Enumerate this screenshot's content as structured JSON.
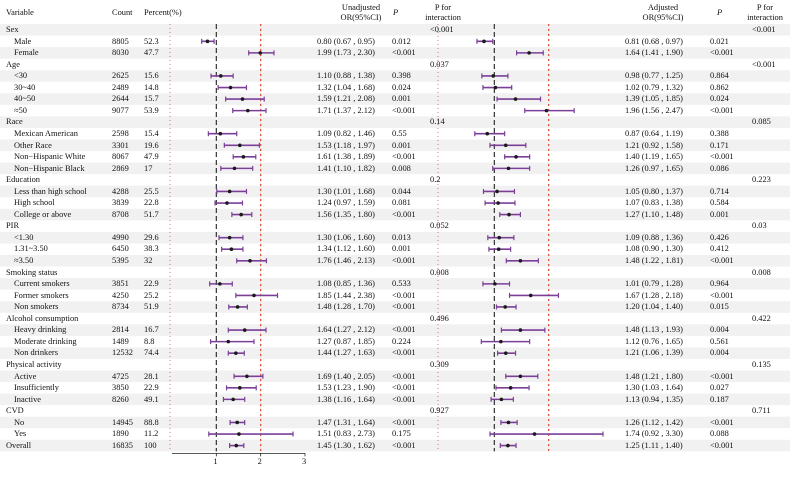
{
  "chart_data": {
    "type": "forest",
    "title": "",
    "headers": {
      "variable": "Variable",
      "count": "Count",
      "percent": "Percent(%)",
      "unadjusted": "Unadjusted",
      "unadjusted_sub": "OR(95%CI)",
      "p": "P",
      "p_inter_1": "P for",
      "p_inter_2": "interaction",
      "adjusted": "Adjusted",
      "adjusted_sub": "OR(95%CI)",
      "p2": "P",
      "p_inter2_1": "P for",
      "p_inter2_2": "interaction"
    },
    "xlim": [
      0,
      3
    ],
    "ticks": [
      "1",
      "2",
      "3"
    ],
    "reference_line": 1,
    "dotted_line": 2,
    "rows": [
      {
        "label": "Sex",
        "group": true,
        "p_int_u": "<0.001",
        "p_int_a": "<0.001"
      },
      {
        "label": "Male",
        "count": "8805",
        "pct": "52.3",
        "or_u": "0.80 (0.67 , 0.95)",
        "p_u": "0.012",
        "or_a": "0.81 (0.68 , 0.97)",
        "p_a": "0.021",
        "u": [
          0.8,
          0.67,
          0.95
        ],
        "a": [
          0.81,
          0.68,
          0.97
        ]
      },
      {
        "label": "Female",
        "count": "8030",
        "pct": "47.7",
        "or_u": "1.99 (1.73 , 2.30)",
        "p_u": "<0.001",
        "or_a": "1.64 (1.41 , 1.90)",
        "p_a": "<0.001",
        "u": [
          1.99,
          1.73,
          2.3
        ],
        "a": [
          1.64,
          1.41,
          1.9
        ]
      },
      {
        "label": "Age",
        "group": true,
        "p_int_u": "0.037",
        "p_int_a": "<0.001"
      },
      {
        "label": "<30",
        "count": "2625",
        "pct": "15.6",
        "or_u": "1.10 (0.88 , 1.38)",
        "p_u": "0.398",
        "or_a": "0.98 (0.77 , 1.25)",
        "p_a": "0.864",
        "u": [
          1.1,
          0.88,
          1.38
        ],
        "a": [
          0.98,
          0.77,
          1.25
        ]
      },
      {
        "label": "30~40",
        "count": "2489",
        "pct": "14.8",
        "or_u": "1.32 (1.04 , 1.68)",
        "p_u": "0.024",
        "or_a": "1.02 (0.79 , 1.32)",
        "p_a": "0.862",
        "u": [
          1.32,
          1.04,
          1.68
        ],
        "a": [
          1.02,
          0.79,
          1.32
        ]
      },
      {
        "label": "40~50",
        "count": "2644",
        "pct": "15.7",
        "or_u": "1.59 (1.21 , 2.08)",
        "p_u": "0.001",
        "or_a": "1.39 (1.05 , 1.85)",
        "p_a": "0.024",
        "u": [
          1.59,
          1.21,
          2.08
        ],
        "a": [
          1.39,
          1.05,
          1.85
        ]
      },
      {
        "label": "≈50",
        "count": "9077",
        "pct": "53.9",
        "or_u": "1.71 (1.37 , 2.12)",
        "p_u": "<0.001",
        "or_a": "1.96 (1.56 , 2.47)",
        "p_a": "<0.001",
        "u": [
          1.71,
          1.37,
          2.12
        ],
        "a": [
          1.96,
          1.56,
          2.47
        ]
      },
      {
        "label": "Race",
        "group": true,
        "p_int_u": "0.14",
        "p_int_a": "0.085"
      },
      {
        "label": "Mexican American",
        "count": "2598",
        "pct": "15.4",
        "or_u": "1.09 (0.82 , 1.46)",
        "p_u": "0.55",
        "or_a": "0.87 (0.64 , 1.19)",
        "p_a": "0.388",
        "u": [
          1.09,
          0.82,
          1.46
        ],
        "a": [
          0.87,
          0.64,
          1.19
        ]
      },
      {
        "label": "Other Race",
        "count": "3301",
        "pct": "19.6",
        "or_u": "1.53 (1.18 , 1.97)",
        "p_u": "0.001",
        "or_a": "1.21 (0.92 , 1.58)",
        "p_a": "0.171",
        "u": [
          1.53,
          1.18,
          1.97
        ],
        "a": [
          1.21,
          0.92,
          1.58
        ]
      },
      {
        "label": "Non−Hispanic White",
        "count": "8067",
        "pct": "47.9",
        "or_u": "1.61 (1.38 , 1.89)",
        "p_u": "<0.001",
        "or_a": "1.40 (1.19 , 1.65)",
        "p_a": "<0.001",
        "u": [
          1.61,
          1.38,
          1.89
        ],
        "a": [
          1.4,
          1.19,
          1.65
        ]
      },
      {
        "label": "Non−Hispanic Black",
        "count": "2869",
        "pct": "17",
        "or_u": "1.41 (1.10 , 1.82)",
        "p_u": "0.008",
        "or_a": "1.26 (0.97 , 1.65)",
        "p_a": "0.086",
        "u": [
          1.41,
          1.1,
          1.82
        ],
        "a": [
          1.26,
          0.97,
          1.65
        ]
      },
      {
        "label": "Education",
        "group": true,
        "p_int_u": "0.2",
        "p_int_a": "0.223"
      },
      {
        "label": "Less than high school",
        "count": "4288",
        "pct": "25.5",
        "or_u": "1.30 (1.01 , 1.68)",
        "p_u": "0.044",
        "or_a": "1.05 (0.80 , 1.37)",
        "p_a": "0.714",
        "u": [
          1.3,
          1.01,
          1.68
        ],
        "a": [
          1.05,
          0.8,
          1.37
        ]
      },
      {
        "label": "High school",
        "count": "3839",
        "pct": "22.8",
        "or_u": "1.24 (0.97 , 1.59)",
        "p_u": "0.081",
        "or_a": "1.07 (0.83 , 1.38)",
        "p_a": "0.584",
        "u": [
          1.24,
          0.97,
          1.59
        ],
        "a": [
          1.07,
          0.83,
          1.38
        ]
      },
      {
        "label": "College or above",
        "count": "8708",
        "pct": "51.7",
        "or_u": "1.56 (1.35 , 1.80)",
        "p_u": "<0.001",
        "or_a": "1.27 (1.10 , 1.48)",
        "p_a": "0.001",
        "u": [
          1.56,
          1.35,
          1.8
        ],
        "a": [
          1.27,
          1.1,
          1.48
        ]
      },
      {
        "label": "PIR",
        "group": true,
        "p_int_u": "0.052",
        "p_int_a": "0.03"
      },
      {
        "label": "<1.30",
        "count": "4990",
        "pct": "29.6",
        "or_u": "1.30 (1.06 , 1.60)",
        "p_u": "0.013",
        "or_a": "1.09 (0.88 , 1.36)",
        "p_a": "0.426",
        "u": [
          1.3,
          1.06,
          1.6
        ],
        "a": [
          1.09,
          0.88,
          1.36
        ]
      },
      {
        "label": "1.31~3.50",
        "count": "6450",
        "pct": "38.3",
        "or_u": "1.34 (1.12 , 1.60)",
        "p_u": "0.001",
        "or_a": "1.08 (0.90 , 1.30)",
        "p_a": "0.412",
        "u": [
          1.34,
          1.12,
          1.6
        ],
        "a": [
          1.08,
          0.9,
          1.3
        ]
      },
      {
        "label": "≈3.50",
        "count": "5395",
        "pct": "32",
        "or_u": "1.76 (1.46 , 2.13)",
        "p_u": "<0.001",
        "or_a": "1.48 (1.22 , 1.81)",
        "p_a": "<0.001",
        "u": [
          1.76,
          1.46,
          2.13
        ],
        "a": [
          1.48,
          1.22,
          1.81
        ]
      },
      {
        "label": "Smoking status",
        "group": true,
        "p_int_u": "0.008",
        "p_int_a": "0.008"
      },
      {
        "label": "Current smokers",
        "count": "3851",
        "pct": "22.9",
        "or_u": "1.08 (0.85 , 1.36)",
        "p_u": "0.533",
        "or_a": "1.01 (0.79 , 1.28)",
        "p_a": "0.964",
        "u": [
          1.08,
          0.85,
          1.36
        ],
        "a": [
          1.01,
          0.79,
          1.28
        ]
      },
      {
        "label": "Former smokers",
        "count": "4250",
        "pct": "25.2",
        "or_u": "1.85 (1.44 , 2.38)",
        "p_u": "<0.001",
        "or_a": "1.67 (1.28 , 2.18)",
        "p_a": "<0.001",
        "u": [
          1.85,
          1.44,
          2.38
        ],
        "a": [
          1.67,
          1.28,
          2.18
        ]
      },
      {
        "label": "Non smokers",
        "count": "8734",
        "pct": "51.9",
        "or_u": "1.48 (1.28 , 1.70)",
        "p_u": "<0.001",
        "or_a": "1.20 (1.04 , 1.40)",
        "p_a": "0.015",
        "u": [
          1.48,
          1.28,
          1.7
        ],
        "a": [
          1.2,
          1.04,
          1.4
        ]
      },
      {
        "label": "Alcohol consumption",
        "group": true,
        "p_int_u": "0.496",
        "p_int_a": "0.422"
      },
      {
        "label": "Heavy drinking",
        "count": "2814",
        "pct": "16.7",
        "or_u": "1.64 (1.27 , 2.12)",
        "p_u": "<0.001",
        "or_a": "1.48 (1.13 , 1.93)",
        "p_a": "0.004",
        "u": [
          1.64,
          1.27,
          2.12
        ],
        "a": [
          1.48,
          1.13,
          1.93
        ]
      },
      {
        "label": "Moderate drinking",
        "count": "1489",
        "pct": "8.8",
        "or_u": "1.27 (0.87 , 1.85)",
        "p_u": "0.224",
        "or_a": "1.12 (0.76 , 1.65)",
        "p_a": "0.561",
        "u": [
          1.27,
          0.87,
          1.85
        ],
        "a": [
          1.12,
          0.76,
          1.65
        ]
      },
      {
        "label": "Non drinkers",
        "count": "12532",
        "pct": "74.4",
        "or_u": "1.44 (1.27 , 1.63)",
        "p_u": "<0.001",
        "or_a": "1.21 (1.06 , 1.39)",
        "p_a": "0.004",
        "u": [
          1.44,
          1.27,
          1.63
        ],
        "a": [
          1.21,
          1.06,
          1.39
        ]
      },
      {
        "label": "Physical activity",
        "group": true,
        "p_int_u": "0.309",
        "p_int_a": "0.135"
      },
      {
        "label": "Active",
        "count": "4725",
        "pct": "28.1",
        "or_u": "1.69 (1.40 , 2.05)",
        "p_u": "<0.001",
        "or_a": "1.48 (1.21 , 1.80)",
        "p_a": "<0.001",
        "u": [
          1.69,
          1.4,
          2.05
        ],
        "a": [
          1.48,
          1.21,
          1.8
        ]
      },
      {
        "label": "Insufficiently",
        "count": "3850",
        "pct": "22.9",
        "or_u": "1.53 (1.23 , 1.90)",
        "p_u": "<0.001",
        "or_a": "1.30 (1.03 , 1.64)",
        "p_a": "0.027",
        "u": [
          1.53,
          1.23,
          1.9
        ],
        "a": [
          1.3,
          1.03,
          1.64
        ]
      },
      {
        "label": "Inactive",
        "count": "8260",
        "pct": "49.1",
        "or_u": "1.38 (1.16 , 1.64)",
        "p_u": "<0.001",
        "or_a": "1.13 (0.94 , 1.35)",
        "p_a": "0.187",
        "u": [
          1.38,
          1.16,
          1.64
        ],
        "a": [
          1.13,
          0.94,
          1.35
        ]
      },
      {
        "label": "CVD",
        "group": true,
        "p_int_u": "0.927",
        "p_int_a": "0.711"
      },
      {
        "label": "No",
        "count": "14945",
        "pct": "88.8",
        "or_u": "1.47 (1.31 , 1.64)",
        "p_u": "<0.001",
        "or_a": "1.26 (1.12 , 1.42)",
        "p_a": "<0.001",
        "u": [
          1.47,
          1.31,
          1.64
        ],
        "a": [
          1.26,
          1.12,
          1.42
        ]
      },
      {
        "label": "Yes",
        "count": "1890",
        "pct": "11.2",
        "or_u": "1.51 (0.83 , 2.73)",
        "p_u": "0.175",
        "or_a": "1.74 (0.92 , 3.30)",
        "p_a": "0.088",
        "u": [
          1.51,
          0.83,
          2.73
        ],
        "a": [
          1.74,
          0.92,
          3.3
        ]
      },
      {
        "label": "Overall",
        "count": "16835",
        "pct": "100",
        "or_u": "1.45 (1.30 , 1.62)",
        "p_u": "<0.001",
        "or_a": "1.25 (1.11 , 1.40)",
        "p_a": "<0.001",
        "u": [
          1.45,
          1.3,
          1.62
        ],
        "a": [
          1.25,
          1.11,
          1.4
        ],
        "group": false
      }
    ],
    "colors": {
      "band": "#f1f1f1",
      "ci": "#7b3f98",
      "point": "#1a1a1a",
      "ref": "#333333",
      "dotted": "#e0523a"
    }
  }
}
